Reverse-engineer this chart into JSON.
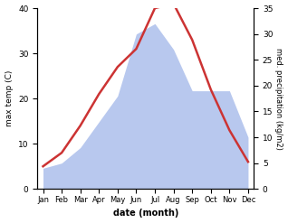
{
  "months": [
    "Jan",
    "Feb",
    "Mar",
    "Apr",
    "May",
    "Jun",
    "Jul",
    "Aug",
    "Sep",
    "Oct",
    "Nov",
    "Dec"
  ],
  "max_temp": [
    5,
    8,
    14,
    21,
    27,
    31,
    40,
    41,
    33,
    22,
    13,
    6
  ],
  "precipitation": [
    4,
    5,
    8,
    13,
    18,
    30,
    32,
    27,
    19,
    19,
    19,
    10
  ],
  "temp_color": "#cc3333",
  "precip_color_fill": "#b8c8ee",
  "temp_ylim": [
    0,
    40
  ],
  "precip_ylim": [
    0,
    35
  ],
  "temp_yticks": [
    0,
    10,
    20,
    30,
    40
  ],
  "precip_yticks": [
    0,
    5,
    10,
    15,
    20,
    25,
    30,
    35
  ],
  "ylabel_left": "max temp (C)",
  "ylabel_right": "med. precipitation (kg/m2)",
  "xlabel": "date (month)"
}
